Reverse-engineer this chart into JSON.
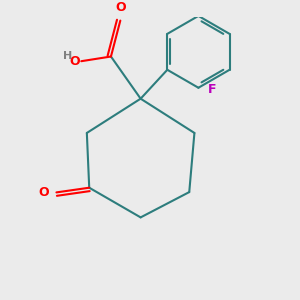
{
  "background_color": "#ebebeb",
  "bond_color": "#2d7d7d",
  "bond_width": 1.5,
  "O_color": "#ff0000",
  "F_color": "#bb00bb",
  "H_color": "#808080",
  "fig_size": [
    3.0,
    3.0
  ],
  "dpi": 100,
  "xlim": [
    0.05,
    0.95
  ],
  "ylim": [
    0.05,
    0.95
  ]
}
